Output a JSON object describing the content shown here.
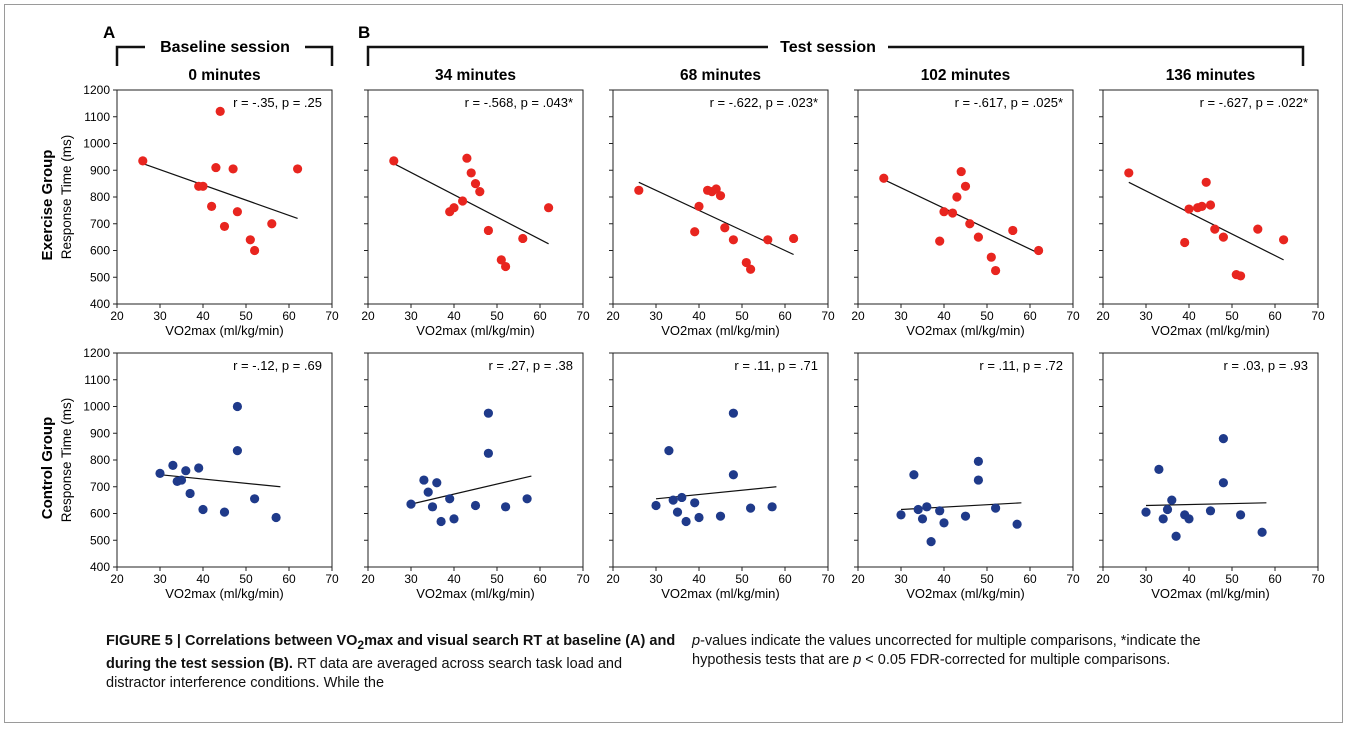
{
  "panel_letters": {
    "a": "A",
    "b": "B"
  },
  "session_labels": {
    "baseline": "Baseline session",
    "test": "Test session"
  },
  "group_labels": {
    "exercise": "Exercise Group",
    "control": "Control Group"
  },
  "caption": {
    "fig_label": "FIGURE 5 | Correlations between VO",
    "fig_sub": "2",
    "fig_rest": "max and visual search RT at baseline (A) and during the test session (B).",
    "body_a": " RT data are averaged across search task load and distractor interference conditions. While the ",
    "body_p": "p",
    "body_b": "-values indicate the values uncorrected for multiple comparisons, *indicate the hypothesis tests that are ",
    "body_p2": "p",
    "body_c": " < 0.05 FDR-corrected for multiple comparisons."
  },
  "colors": {
    "exercise": "#e8251f",
    "control": "#1f3a8a"
  },
  "chart_data": [
    {
      "type": "scatter",
      "row": 0,
      "col": 0,
      "title": "0 minutes",
      "annotation": "r = -.35, p = .25",
      "xlabel": "VO2max (ml/kg/min)",
      "ylabel": "Response Time (ms)",
      "xlim": [
        20,
        70
      ],
      "ylim": [
        400,
        1200
      ],
      "x_ticks": [
        20,
        30,
        40,
        50,
        60,
        70
      ],
      "y_ticks": [
        400,
        500,
        600,
        700,
        800,
        900,
        1000,
        1100,
        1200
      ],
      "trend": [
        [
          26,
          925
        ],
        [
          62,
          720
        ]
      ],
      "points": [
        [
          26,
          935
        ],
        [
          39,
          840
        ],
        [
          40,
          840
        ],
        [
          42,
          765
        ],
        [
          43,
          910
        ],
        [
          44,
          1120
        ],
        [
          45,
          690
        ],
        [
          47,
          905
        ],
        [
          48,
          745
        ],
        [
          51,
          640
        ],
        [
          52,
          600
        ],
        [
          56,
          700
        ],
        [
          62,
          905
        ]
      ]
    },
    {
      "type": "scatter",
      "row": 0,
      "col": 1,
      "title": "34 minutes",
      "annotation": "r = -.568, p = .043*",
      "xlabel": "VO2max (ml/kg/min)",
      "ylabel": "",
      "xlim": [
        20,
        70
      ],
      "ylim": [
        400,
        1200
      ],
      "x_ticks": [
        20,
        30,
        40,
        50,
        60,
        70
      ],
      "y_ticks": [],
      "trend": [
        [
          26,
          925
        ],
        [
          62,
          625
        ]
      ],
      "points": [
        [
          26,
          935
        ],
        [
          39,
          745
        ],
        [
          40,
          760
        ],
        [
          42,
          785
        ],
        [
          43,
          945
        ],
        [
          44,
          890
        ],
        [
          45,
          850
        ],
        [
          46,
          820
        ],
        [
          48,
          675
        ],
        [
          51,
          565
        ],
        [
          52,
          540
        ],
        [
          56,
          645
        ],
        [
          62,
          760
        ]
      ]
    },
    {
      "type": "scatter",
      "row": 0,
      "col": 2,
      "title": "68 minutes",
      "annotation": "r = -.622, p = .023*",
      "xlabel": "VO2max (ml/kg/min)",
      "ylabel": "",
      "xlim": [
        20,
        70
      ],
      "ylim": [
        400,
        1200
      ],
      "x_ticks": [
        20,
        30,
        40,
        50,
        60,
        70
      ],
      "y_ticks": [],
      "trend": [
        [
          26,
          855
        ],
        [
          62,
          585
        ]
      ],
      "points": [
        [
          26,
          825
        ],
        [
          39,
          670
        ],
        [
          40,
          765
        ],
        [
          42,
          825
        ],
        [
          43,
          820
        ],
        [
          44,
          830
        ],
        [
          45,
          805
        ],
        [
          46,
          685
        ],
        [
          48,
          640
        ],
        [
          51,
          555
        ],
        [
          52,
          530
        ],
        [
          56,
          640
        ],
        [
          62,
          645
        ]
      ]
    },
    {
      "type": "scatter",
      "row": 0,
      "col": 3,
      "title": "102 minutes",
      "annotation": "r = -.617, p = .025*",
      "xlabel": "VO2max (ml/kg/min)",
      "ylabel": "",
      "xlim": [
        20,
        70
      ],
      "ylim": [
        400,
        1200
      ],
      "x_ticks": [
        20,
        30,
        40,
        50,
        60,
        70
      ],
      "y_ticks": [],
      "trend": [
        [
          26,
          865
        ],
        [
          62,
          590
        ]
      ],
      "points": [
        [
          26,
          870
        ],
        [
          39,
          635
        ],
        [
          40,
          745
        ],
        [
          42,
          740
        ],
        [
          43,
          800
        ],
        [
          44,
          895
        ],
        [
          45,
          840
        ],
        [
          46,
          700
        ],
        [
          48,
          650
        ],
        [
          51,
          575
        ],
        [
          52,
          525
        ],
        [
          56,
          675
        ],
        [
          62,
          600
        ]
      ]
    },
    {
      "type": "scatter",
      "row": 0,
      "col": 4,
      "title": "136 minutes",
      "annotation": "r = -.627, p = .022*",
      "xlabel": "VO2max (ml/kg/min)",
      "ylabel": "",
      "xlim": [
        20,
        70
      ],
      "ylim": [
        400,
        1200
      ],
      "x_ticks": [
        20,
        30,
        40,
        50,
        60,
        70
      ],
      "y_ticks": [],
      "trend": [
        [
          26,
          855
        ],
        [
          62,
          565
        ]
      ],
      "points": [
        [
          26,
          890
        ],
        [
          39,
          630
        ],
        [
          40,
          755
        ],
        [
          42,
          760
        ],
        [
          43,
          765
        ],
        [
          44,
          855
        ],
        [
          45,
          770
        ],
        [
          46,
          680
        ],
        [
          48,
          650
        ],
        [
          51,
          510
        ],
        [
          52,
          505
        ],
        [
          56,
          680
        ],
        [
          62,
          640
        ]
      ]
    },
    {
      "type": "scatter",
      "row": 1,
      "col": 0,
      "title": "",
      "annotation": "r = -.12, p = .69",
      "xlabel": "VO2max (ml/kg/min)",
      "ylabel": "Response Time (ms)",
      "xlim": [
        20,
        70
      ],
      "ylim": [
        400,
        1200
      ],
      "x_ticks": [
        20,
        30,
        40,
        50,
        60,
        70
      ],
      "y_ticks": [
        400,
        500,
        600,
        700,
        800,
        900,
        1000,
        1100,
        1200
      ],
      "trend": [
        [
          30,
          745
        ],
        [
          58,
          700
        ]
      ],
      "points": [
        [
          30,
          750
        ],
        [
          33,
          780
        ],
        [
          34,
          720
        ],
        [
          35,
          725
        ],
        [
          36,
          760
        ],
        [
          37,
          675
        ],
        [
          39,
          770
        ],
        [
          40,
          615
        ],
        [
          45,
          605
        ],
        [
          48,
          1000
        ],
        [
          48,
          835
        ],
        [
          52,
          655
        ],
        [
          57,
          585
        ]
      ]
    },
    {
      "type": "scatter",
      "row": 1,
      "col": 1,
      "title": "",
      "annotation": "r = .27, p = .38",
      "xlabel": "VO2max (ml/kg/min)",
      "ylabel": "",
      "xlim": [
        20,
        70
      ],
      "ylim": [
        400,
        1200
      ],
      "x_ticks": [
        20,
        30,
        40,
        50,
        60,
        70
      ],
      "y_ticks": [],
      "trend": [
        [
          30,
          635
        ],
        [
          58,
          740
        ]
      ],
      "points": [
        [
          30,
          635
        ],
        [
          33,
          725
        ],
        [
          34,
          680
        ],
        [
          35,
          625
        ],
        [
          36,
          715
        ],
        [
          37,
          570
        ],
        [
          39,
          655
        ],
        [
          40,
          580
        ],
        [
          45,
          630
        ],
        [
          48,
          975
        ],
        [
          48,
          825
        ],
        [
          52,
          625
        ],
        [
          57,
          655
        ]
      ]
    },
    {
      "type": "scatter",
      "row": 1,
      "col": 2,
      "title": "",
      "annotation": "r = .11, p = .71",
      "xlabel": "VO2max (ml/kg/min)",
      "ylabel": "",
      "xlim": [
        20,
        70
      ],
      "ylim": [
        400,
        1200
      ],
      "x_ticks": [
        20,
        30,
        40,
        50,
        60,
        70
      ],
      "y_ticks": [],
      "trend": [
        [
          30,
          655
        ],
        [
          58,
          700
        ]
      ],
      "points": [
        [
          30,
          630
        ],
        [
          33,
          835
        ],
        [
          34,
          650
        ],
        [
          35,
          605
        ],
        [
          36,
          660
        ],
        [
          37,
          570
        ],
        [
          39,
          640
        ],
        [
          40,
          585
        ],
        [
          45,
          590
        ],
        [
          48,
          975
        ],
        [
          48,
          745
        ],
        [
          52,
          620
        ],
        [
          57,
          625
        ]
      ]
    },
    {
      "type": "scatter",
      "row": 1,
      "col": 3,
      "title": "",
      "annotation": "r = .11, p = .72",
      "xlabel": "VO2max (ml/kg/min)",
      "ylabel": "",
      "xlim": [
        20,
        70
      ],
      "ylim": [
        400,
        1200
      ],
      "x_ticks": [
        20,
        30,
        40,
        50,
        60,
        70
      ],
      "y_ticks": [],
      "trend": [
        [
          30,
          615
        ],
        [
          58,
          640
        ]
      ],
      "points": [
        [
          30,
          595
        ],
        [
          33,
          745
        ],
        [
          34,
          615
        ],
        [
          35,
          580
        ],
        [
          36,
          625
        ],
        [
          37,
          495
        ],
        [
          39,
          610
        ],
        [
          40,
          565
        ],
        [
          45,
          590
        ],
        [
          48,
          795
        ],
        [
          48,
          725
        ],
        [
          52,
          620
        ],
        [
          57,
          560
        ]
      ]
    },
    {
      "type": "scatter",
      "row": 1,
      "col": 4,
      "title": "",
      "annotation": "r = .03, p = .93",
      "xlabel": "VO2max (ml/kg/min)",
      "ylabel": "",
      "xlim": [
        20,
        70
      ],
      "ylim": [
        400,
        1200
      ],
      "x_ticks": [
        20,
        30,
        40,
        50,
        60,
        70
      ],
      "y_ticks": [],
      "trend": [
        [
          30,
          630
        ],
        [
          58,
          640
        ]
      ],
      "points": [
        [
          30,
          605
        ],
        [
          33,
          765
        ],
        [
          34,
          580
        ],
        [
          35,
          615
        ],
        [
          36,
          650
        ],
        [
          37,
          515
        ],
        [
          39,
          595
        ],
        [
          40,
          580
        ],
        [
          45,
          610
        ],
        [
          48,
          880
        ],
        [
          48,
          715
        ],
        [
          52,
          595
        ],
        [
          57,
          530
        ]
      ]
    }
  ]
}
